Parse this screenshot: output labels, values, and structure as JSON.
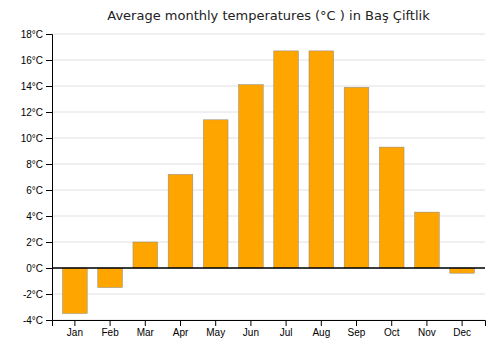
{
  "chart_data": {
    "type": "bar",
    "title": "Average monthly temperatures (°C ) in Baş Çiftlik",
    "categories": [
      "Jan",
      "Feb",
      "Mar",
      "Apr",
      "May",
      "Jun",
      "Jul",
      "Aug",
      "Sep",
      "Oct",
      "Nov",
      "Dec"
    ],
    "values": [
      -3.5,
      -1.5,
      2.0,
      7.2,
      11.4,
      14.1,
      16.7,
      16.7,
      13.9,
      9.3,
      4.3,
      -0.4
    ],
    "color": "#FFA500",
    "ylim": [
      -4,
      18
    ],
    "yticks": [
      {
        "value": -4,
        "label": "-4°C"
      },
      {
        "value": -2,
        "label": "-2°C"
      },
      {
        "value": 0,
        "label": "0°C"
      },
      {
        "value": 2,
        "label": "2°C"
      },
      {
        "value": 4,
        "label": "4°C"
      },
      {
        "value": 6,
        "label": "6°C"
      },
      {
        "value": 8,
        "label": "8°C"
      },
      {
        "value": 10,
        "label": "10°C"
      },
      {
        "value": 12,
        "label": "12°C"
      },
      {
        "value": 14,
        "label": "14°C"
      },
      {
        "value": 16,
        "label": "16°C"
      },
      {
        "value": 18,
        "label": "18°C"
      }
    ],
    "grid": true
  }
}
